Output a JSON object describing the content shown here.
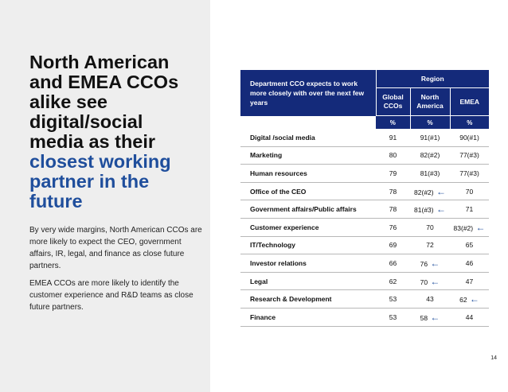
{
  "headline": {
    "line1": "North American",
    "line2": "and EMEA CCOs",
    "line3": "alike see",
    "line4": "digital/social",
    "line5": "media as their",
    "accent1": "closest working",
    "accent2": "partner in the",
    "accent3": "future"
  },
  "paragraph1": "By very wide margins, North American CCOs are more likely to expect the CEO, government affairs, IR, legal, and finance as close future partners.",
  "paragraph2": "EMEA CCOs are more likely to identify the customer experience and R&D teams as close future partners.",
  "table": {
    "title": "Department CCO expects to work more closely with over the next few years",
    "region_label": "Region",
    "columns": [
      "Global CCOs",
      "North America",
      "EMEA"
    ],
    "unit": "%",
    "rows": [
      {
        "label": "Digital /social media",
        "global": "91",
        "na": "91(#1)",
        "emea": "90(#1)",
        "arrow": ""
      },
      {
        "label": "Marketing",
        "global": "80",
        "na": "82(#2)",
        "emea": "77(#3)",
        "arrow": ""
      },
      {
        "label": "Human resources",
        "global": "79",
        "na": "81(#3)",
        "emea": "77(#3)",
        "arrow": ""
      },
      {
        "label": "Office of the CEO",
        "global": "78",
        "na": "82(#2)",
        "emea": "70",
        "arrow": "na"
      },
      {
        "label": "Government affairs/Public affairs",
        "global": "78",
        "na": "81(#3)",
        "emea": "71",
        "arrow": "na"
      },
      {
        "label": "Customer experience",
        "global": "76",
        "na": "70",
        "emea": "83(#2)",
        "arrow": "emea"
      },
      {
        "label": "IT/Technology",
        "global": "69",
        "na": "72",
        "emea": "65",
        "arrow": ""
      },
      {
        "label": "Investor relations",
        "global": "66",
        "na": "76",
        "emea": "46",
        "arrow": "na"
      },
      {
        "label": "Legal",
        "global": "62",
        "na": "70",
        "emea": "47",
        "arrow": "na"
      },
      {
        "label": "Research & Development",
        "global": "53",
        "na": "43",
        "emea": "62",
        "arrow": "emea"
      },
      {
        "label": "Finance",
        "global": "53",
        "na": "58",
        "emea": "44",
        "arrow": "na"
      }
    ]
  },
  "page_number": "14",
  "colors": {
    "accent": "#1f4e9c",
    "header_bg": "#142a7a",
    "panel_bg": "#eeeeee"
  }
}
